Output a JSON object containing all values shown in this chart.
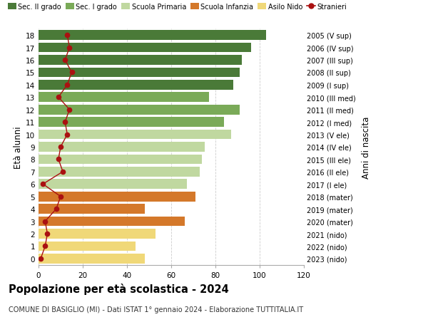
{
  "ages": [
    18,
    17,
    16,
    15,
    14,
    13,
    12,
    11,
    10,
    9,
    8,
    7,
    6,
    5,
    4,
    3,
    2,
    1,
    0
  ],
  "bar_values": [
    103,
    96,
    92,
    91,
    88,
    77,
    91,
    84,
    87,
    75,
    74,
    73,
    67,
    71,
    48,
    66,
    53,
    44,
    48
  ],
  "stranieri_values": [
    13,
    14,
    12,
    15,
    13,
    9,
    14,
    12,
    13,
    10,
    9,
    11,
    2,
    10,
    8,
    3,
    4,
    3,
    1
  ],
  "right_labels": [
    "2005 (V sup)",
    "2006 (IV sup)",
    "2007 (III sup)",
    "2008 (II sup)",
    "2009 (I sup)",
    "2010 (III med)",
    "2011 (II med)",
    "2012 (I med)",
    "2013 (V ele)",
    "2014 (IV ele)",
    "2015 (III ele)",
    "2016 (II ele)",
    "2017 (I ele)",
    "2018 (mater)",
    "2019 (mater)",
    "2020 (mater)",
    "2021 (nido)",
    "2022 (nido)",
    "2023 (nido)"
  ],
  "bar_colors": [
    "#4a7a38",
    "#4a7a38",
    "#4a7a38",
    "#4a7a38",
    "#4a7a38",
    "#7aaa58",
    "#7aaa58",
    "#7aaa58",
    "#c0d8a0",
    "#c0d8a0",
    "#c0d8a0",
    "#c0d8a0",
    "#c0d8a0",
    "#d4782a",
    "#d4782a",
    "#d4782a",
    "#f0d878",
    "#f0d878",
    "#f0d878"
  ],
  "legend_labels": [
    "Sec. II grado",
    "Sec. I grado",
    "Scuola Primaria",
    "Scuola Infanzia",
    "Asilo Nido",
    "Stranieri"
  ],
  "legend_colors": [
    "#4a7a38",
    "#7aaa58",
    "#c0d8a0",
    "#d4782a",
    "#f0d878",
    "#aa1111"
  ],
  "title": "Popolazione per età scolastica - 2024",
  "subtitle": "COMUNE DI BASIGLIO (MI) - Dati ISTAT 1° gennaio 2024 - Elaborazione TUTTITALIA.IT",
  "ylabel_left": "Età alunni",
  "ylabel_right": "Anni di nascita",
  "xlim": [
    0,
    120
  ],
  "xticks": [
    0,
    20,
    40,
    60,
    80,
    100,
    120
  ],
  "stranieri_color": "#aa1111",
  "background_color": "#ffffff",
  "grid_color": "#cccccc"
}
